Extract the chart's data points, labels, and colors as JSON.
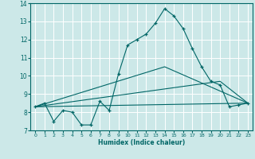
{
  "xlabel": "Humidex (Indice chaleur)",
  "ylabel": "",
  "bg_color": "#cce8e8",
  "line_color": "#006666",
  "grid_color": "#ffffff",
  "xlim": [
    -0.5,
    23.5
  ],
  "ylim": [
    7,
    14
  ],
  "yticks": [
    7,
    8,
    9,
    10,
    11,
    12,
    13,
    14
  ],
  "xticks": [
    0,
    1,
    2,
    3,
    4,
    5,
    6,
    7,
    8,
    9,
    10,
    11,
    12,
    13,
    14,
    15,
    16,
    17,
    18,
    19,
    20,
    21,
    22,
    23
  ],
  "main_line": {
    "x": [
      0,
      1,
      2,
      3,
      4,
      5,
      6,
      7,
      8,
      9,
      10,
      11,
      12,
      13,
      14,
      15,
      16,
      17,
      18,
      19,
      20,
      21,
      22,
      23
    ],
    "y": [
      8.3,
      8.5,
      7.5,
      8.1,
      8.0,
      7.3,
      7.3,
      8.6,
      8.1,
      10.1,
      11.7,
      12.0,
      12.3,
      12.9,
      13.7,
      13.3,
      12.6,
      11.5,
      10.5,
      9.7,
      9.5,
      8.3,
      8.4,
      8.5
    ]
  },
  "ref_lines": [
    {
      "x": [
        0,
        23
      ],
      "y": [
        8.3,
        8.5
      ]
    },
    {
      "x": [
        0,
        20,
        23
      ],
      "y": [
        8.3,
        9.7,
        8.5
      ]
    },
    {
      "x": [
        0,
        14,
        23
      ],
      "y": [
        8.3,
        10.5,
        8.5
      ]
    }
  ]
}
